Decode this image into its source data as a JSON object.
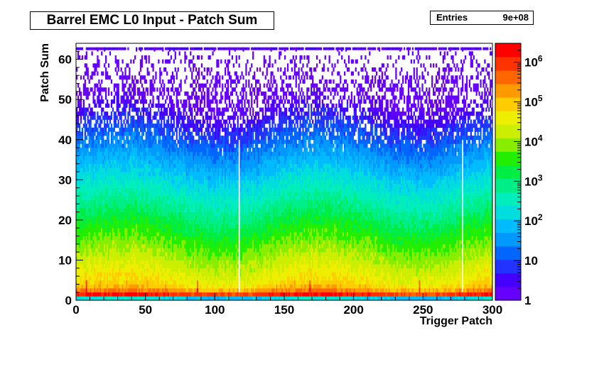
{
  "title": "Barrel EMC L0 Input - Patch Sum",
  "stats": {
    "entries_label": "Entries",
    "entries_value": "9e+08"
  },
  "footer_text": "",
  "chart_data": {
    "type": "heatmap",
    "title": "Barrel EMC L0 Input - Patch Sum",
    "xlabel": "Trigger Patch",
    "ylabel": "Patch Sum",
    "xlim": [
      0,
      300
    ],
    "ylim": [
      0,
      64
    ],
    "x_ticks": [
      0,
      50,
      100,
      150,
      200,
      250,
      300
    ],
    "y_ticks": [
      0,
      10,
      20,
      30,
      40,
      50,
      60
    ],
    "z_scale": "log",
    "zlim": [
      1,
      3000000
    ],
    "z_ticks": [
      {
        "value": 1,
        "label": "1"
      },
      {
        "value": 10,
        "label": "10"
      },
      {
        "value": 100,
        "label": "10^2"
      },
      {
        "value": 1000,
        "label": "10^3"
      },
      {
        "value": 10000,
        "label": "10^4"
      },
      {
        "value": 100000,
        "label": "10^5"
      },
      {
        "value": 1000000,
        "label": "10^6"
      }
    ],
    "color_palette": [
      "#6600ff",
      "#4400ff",
      "#2233ff",
      "#0066ff",
      "#0099ff",
      "#00bbff",
      "#00dddd",
      "#00eebb",
      "#00ee88",
      "#00ee44",
      "#22ee00",
      "#88ee00",
      "#ccee00",
      "#eeee00",
      "#ffcc00",
      "#ff9900",
      "#ff6600",
      "#ff3300",
      "#ff0000"
    ],
    "bin_contents_approx": [
      {
        "patch_sum_range": [
          0,
          1
        ],
        "counts": "~1e2 (cyan/blue band)"
      },
      {
        "patch_sum_range": [
          1,
          2
        ],
        "counts": "~1e6 (red band)"
      },
      {
        "patch_sum_range": [
          2,
          4
        ],
        "counts": "~1e5"
      },
      {
        "patch_sum_range": [
          4,
          10
        ],
        "counts": "~1e4"
      },
      {
        "patch_sum_range": [
          10,
          20
        ],
        "counts": "~1e3"
      },
      {
        "patch_sum_range": [
          20,
          30
        ],
        "counts": "~1e2"
      },
      {
        "patch_sum_range": [
          30,
          45
        ],
        "counts": "~10"
      },
      {
        "patch_sum_range": [
          45,
          62
        ],
        "counts": "~1 (sparse)"
      },
      {
        "patch_sum_range": [
          62,
          63
        ],
        "counts": "~1-10 (overflow row)"
      }
    ],
    "hot_columns_x": [
      7,
      87,
      117,
      168,
      247,
      278
    ],
    "dead_columns_x": [
      117,
      278
    ],
    "grid": false,
    "legend": "none"
  }
}
